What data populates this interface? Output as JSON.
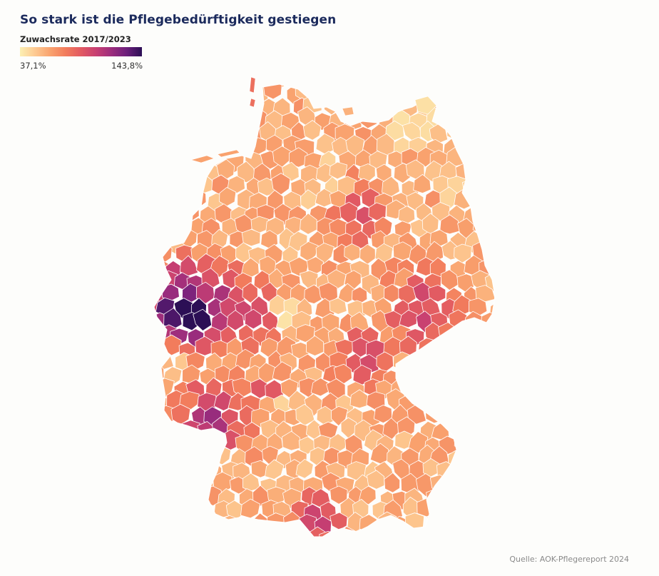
{
  "title": "So stark ist die Pflegebedürftigkeit gestiegen",
  "legend": {
    "title": "Zuwachsrate 2017/2023",
    "min_label": "37,1%",
    "max_label": "143,8%",
    "min_value": 37.1,
    "max_value": 143.8,
    "colors": [
      "#fcefb2",
      "#fdc991",
      "#f9a26e",
      "#f27c5c",
      "#e25a62",
      "#c73f72",
      "#9c2d7d",
      "#6c1f7b",
      "#2c0f55"
    ]
  },
  "source": "Quelle: AOK-Pflegereport 2024",
  "map": {
    "region": "Germany",
    "unit": "district",
    "border_color": "#ffffff"
  }
}
